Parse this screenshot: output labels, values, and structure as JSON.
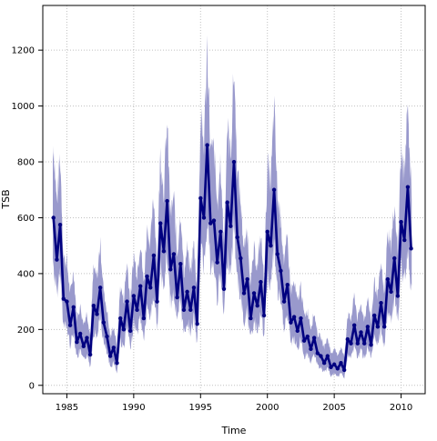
{
  "chart_data": {
    "type": "line",
    "title": "",
    "xlabel": "Time",
    "ylabel": "TSB",
    "xlim": [
      1983.2,
      2011.8
    ],
    "ylim": [
      -30,
      1360
    ],
    "x_ticks": [
      1985,
      1990,
      1995,
      2000,
      2005,
      2010
    ],
    "y_ticks": [
      0,
      200,
      400,
      600,
      800,
      1000,
      1200
    ],
    "x_tick_labels": [
      "1985",
      "1990",
      "1995",
      "2000",
      "2005",
      "2010"
    ],
    "y_tick_labels": [
      "0",
      "200",
      "400",
      "600",
      "800",
      "1000",
      "1200"
    ],
    "grid": true,
    "legend": "none",
    "colors": {
      "line": "#000080",
      "band": "#9999cc",
      "grid": "#c0c0c0"
    },
    "series": [
      {
        "x": [
          1984.0,
          1984.25,
          1984.5,
          1984.75,
          1985.0,
          1985.25,
          1985.5,
          1985.75,
          1986.0,
          1986.25,
          1986.5,
          1986.75,
          1987.0,
          1987.25,
          1987.5,
          1987.75,
          1988.0,
          1988.25,
          1988.5,
          1988.75,
          1989.0,
          1989.25,
          1989.5,
          1989.75,
          1990.0,
          1990.25,
          1990.5,
          1990.75,
          1991.0,
          1991.25,
          1991.5,
          1991.75,
          1992.0,
          1992.25,
          1992.5,
          1992.75,
          1993.0,
          1993.25,
          1993.5,
          1993.75,
          1994.0,
          1994.25,
          1994.5,
          1994.75,
          1995.0,
          1995.25,
          1995.5,
          1995.75,
          1996.0,
          1996.25,
          1996.5,
          1996.75,
          1997.0,
          1997.25,
          1997.5,
          1997.75,
          1998.0,
          1998.25,
          1998.5,
          1998.75,
          1999.0,
          1999.25,
          1999.5,
          1999.75,
          2000.0,
          2000.25,
          2000.5,
          2000.75,
          2001.0,
          2001.25,
          2001.5,
          2001.75,
          2002.0,
          2002.25,
          2002.5,
          2002.75,
          2003.0,
          2003.25,
          2003.5,
          2003.75,
          2004.0,
          2004.25,
          2004.5,
          2004.75,
          2005.0,
          2005.25,
          2005.5,
          2005.75,
          2006.0,
          2006.25,
          2006.5,
          2006.75,
          2007.0,
          2007.25,
          2007.5,
          2007.75,
          2008.0,
          2008.25,
          2008.5,
          2008.75,
          2009.0,
          2009.25,
          2009.5,
          2009.75,
          2010.0,
          2010.25,
          2010.5,
          2010.75
        ],
        "values": [
          600,
          450,
          575,
          310,
          300,
          215,
          280,
          155,
          185,
          140,
          170,
          110,
          285,
          255,
          350,
          225,
          175,
          105,
          135,
          80,
          240,
          200,
          300,
          195,
          320,
          270,
          355,
          240,
          390,
          350,
          465,
          300,
          580,
          480,
          660,
          415,
          470,
          315,
          435,
          270,
          335,
          270,
          350,
          220,
          670,
          600,
          860,
          580,
          590,
          440,
          550,
          345,
          655,
          570,
          800,
          530,
          455,
          330,
          380,
          240,
          330,
          285,
          370,
          250,
          550,
          500,
          700,
          470,
          410,
          300,
          360,
          225,
          245,
          195,
          240,
          160,
          175,
          130,
          170,
          115,
          105,
          80,
          105,
          65,
          75,
          60,
          80,
          55,
          165,
          150,
          215,
          150,
          190,
          150,
          210,
          145,
          250,
          210,
          295,
          210,
          380,
          335,
          455,
          320,
          585,
          520,
          710,
          490
        ]
      }
    ]
  }
}
